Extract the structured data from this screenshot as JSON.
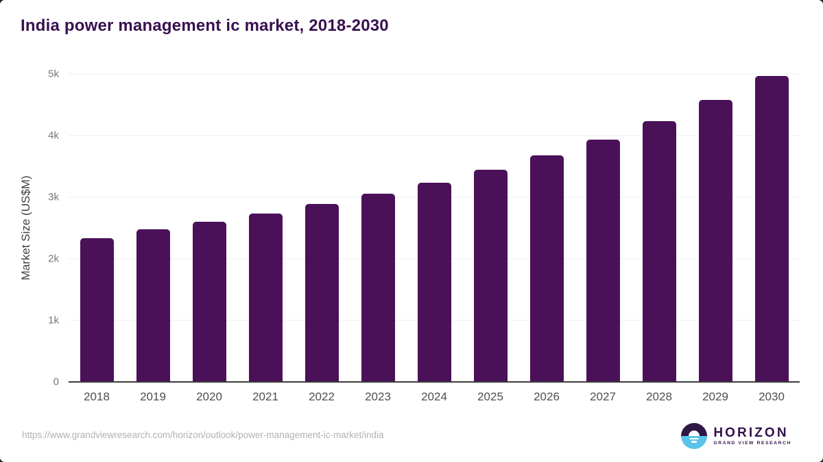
{
  "page": {
    "title": "India power management ic market, 2018-2030"
  },
  "chart_data": {
    "type": "bar",
    "title": "India power management ic market, 2018-2030",
    "xlabel": "",
    "ylabel": "Market Size (US$M)",
    "categories": [
      "2018",
      "2019",
      "2020",
      "2021",
      "2022",
      "2023",
      "2024",
      "2025",
      "2026",
      "2027",
      "2028",
      "2029",
      "2030"
    ],
    "values": [
      2335,
      2480,
      2600,
      2730,
      2890,
      3055,
      3230,
      3440,
      3675,
      3935,
      4230,
      4580,
      4970
    ],
    "ylim": [
      0,
      5000
    ],
    "yticks": [
      {
        "value": 0,
        "label": "0"
      },
      {
        "value": 1000,
        "label": "1k"
      },
      {
        "value": 2000,
        "label": "2k"
      },
      {
        "value": 3000,
        "label": "3k"
      },
      {
        "value": 4000,
        "label": "4k"
      },
      {
        "value": 5000,
        "label": "5k"
      }
    ],
    "grid": "horizontal",
    "legend": "none",
    "bar_color": "#4a1159"
  },
  "colors": {
    "title": "#38104e",
    "bar": "#4a1159",
    "gridline": "#ececec",
    "axis_line": "#3a3a3a",
    "tick_label": "#767676",
    "x_label": "#4e4e4e",
    "url_text": "#b1b1b1",
    "logo_purple": "#2e1745",
    "logo_blue": "#58c4e9"
  },
  "footer": {
    "source_url": "https://www.grandviewresearch.com/horizon/outlook/power-management-ic-market/india",
    "logo": {
      "name": "HORIZON",
      "subtitle": "GRAND VIEW RESEARCH"
    }
  }
}
